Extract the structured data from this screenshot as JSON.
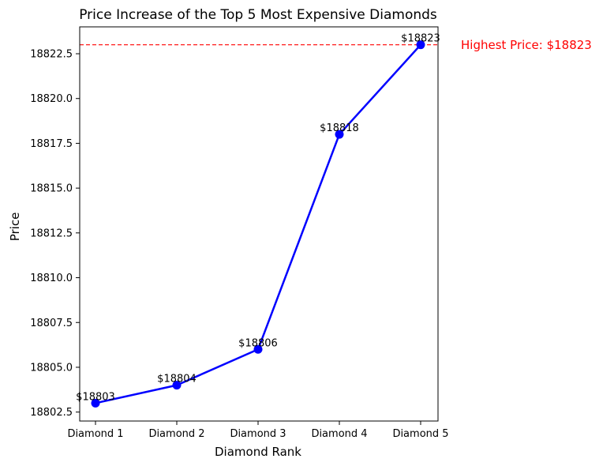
{
  "chart_data": {
    "type": "line",
    "title": "Price Increase of the Top 5 Most Expensive Diamonds",
    "xlabel": "Diamond Rank",
    "ylabel": "Price",
    "categories": [
      "Diamond 1",
      "Diamond 2",
      "Diamond 3",
      "Diamond 4",
      "Diamond 5"
    ],
    "series": [
      {
        "values": [
          18803,
          18804,
          18806,
          18818,
          18823
        ],
        "color": "#0000ff",
        "marker": "circle"
      }
    ],
    "data_labels": [
      "$18803",
      "$18804",
      "$18806",
      "$18818",
      "$18823"
    ],
    "ylim": [
      18802.0,
      18824.0
    ],
    "yticks": [
      18802.5,
      18805.0,
      18807.5,
      18810.0,
      18812.5,
      18815.0,
      18817.5,
      18820.0,
      18822.5
    ],
    "ytick_labels": [
      "18802.5",
      "18805.0",
      "18807.5",
      "18810.0",
      "18812.5",
      "18815.0",
      "18817.5",
      "18820.0",
      "18822.5"
    ],
    "grid": false,
    "reference_line": {
      "value": 18823,
      "style": "dashed",
      "color": "#ff0000"
    },
    "annotation": {
      "text": "Highest Price: $18823",
      "color": "#ff0000"
    }
  }
}
